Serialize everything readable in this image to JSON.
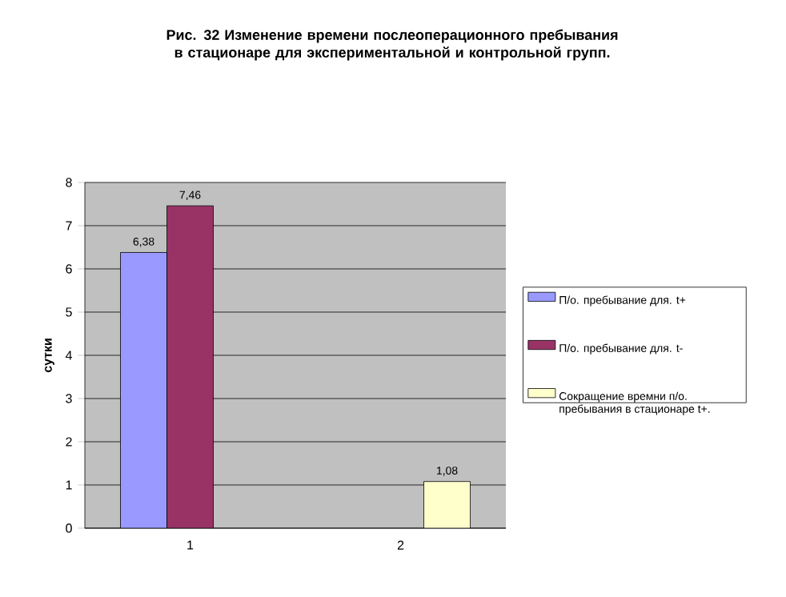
{
  "chart_data": {
    "type": "bar",
    "title": "Рис. 32 Изменение времени послеоперационного пребывания в стационаре для экспериментальной и контрольной групп.",
    "ylabel": "сутки",
    "categories": [
      "1",
      "2"
    ],
    "series": [
      {
        "name": "П/о. пребывание для. t+",
        "color": "#9999ff",
        "values": [
          6.38,
          null
        ],
        "value_labels": [
          "6,38",
          null
        ]
      },
      {
        "name": "П/о. пребывание для. t-",
        "color": "#993366",
        "values": [
          7.46,
          null
        ],
        "value_labels": [
          "7,46",
          null
        ]
      },
      {
        "name": "Сокращение времни п/о. пребывания в стационаре t+.",
        "color": "#ffffcc",
        "values": [
          null,
          1.08
        ],
        "value_labels": [
          null,
          "1,08"
        ]
      }
    ],
    "ylim": [
      0,
      8
    ],
    "yticks": [
      0,
      1,
      2,
      3,
      4,
      5,
      6,
      7,
      8
    ],
    "grid": "y",
    "legend": "right"
  }
}
